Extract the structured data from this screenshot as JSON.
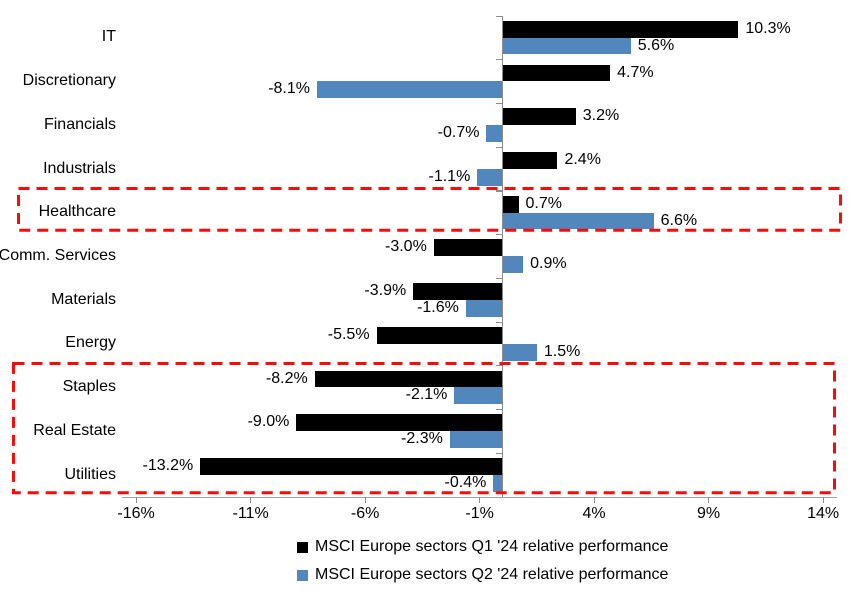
{
  "colors": {
    "series_q1": "#000000",
    "series_q2": "#5287BD",
    "highlight_red": "#FB0A08",
    "axis_gray": "#a0a0a0",
    "tick_gray": "#8c8c8c",
    "text": "#000000"
  },
  "chart_data": {
    "type": "bar",
    "orientation": "horizontal",
    "grouped": true,
    "title": "",
    "xlabel": "",
    "ylabel": "",
    "grid": false,
    "legend_position": "bottom",
    "categories": [
      "IT",
      "Discretionary",
      "Financials",
      "Industrials",
      "Healthcare",
      "Comm. Services",
      "Materials",
      "Energy",
      "Staples",
      "Real Estate",
      "Utilities"
    ],
    "series": [
      {
        "name": "MSCI Europe sectors Q1 '24 relative performance",
        "color": "#000000",
        "values": [
          10.3,
          4.7,
          3.2,
          2.4,
          0.7,
          -3.0,
          -3.9,
          -5.5,
          -8.2,
          -9.0,
          -13.2
        ]
      },
      {
        "name": "MSCI Europe sectors Q2 '24 relative performance",
        "color": "#5287BD",
        "values": [
          5.6,
          -8.1,
          -0.7,
          -1.1,
          6.6,
          0.9,
          -1.6,
          1.5,
          -2.1,
          -2.3,
          -0.4
        ]
      }
    ],
    "data_labels": {
      "visible": true,
      "format": "one-decimal-percent",
      "suffix": "%"
    },
    "x_axis": {
      "ticks": [
        "-16%",
        "-11%",
        "-6%",
        "-1%",
        "4%",
        "9%",
        "14%"
      ],
      "tick_values": [
        -16,
        -11,
        -6,
        -1,
        4,
        9,
        14
      ],
      "min": -16,
      "max": 14
    },
    "annotations": [
      {
        "type": "highlight-box",
        "style": "red-dashed",
        "sectors": [
          "Healthcare"
        ]
      },
      {
        "type": "highlight-box",
        "style": "red-dashed",
        "sectors": [
          "Staples",
          "Real Estate",
          "Utilities"
        ]
      }
    ]
  }
}
